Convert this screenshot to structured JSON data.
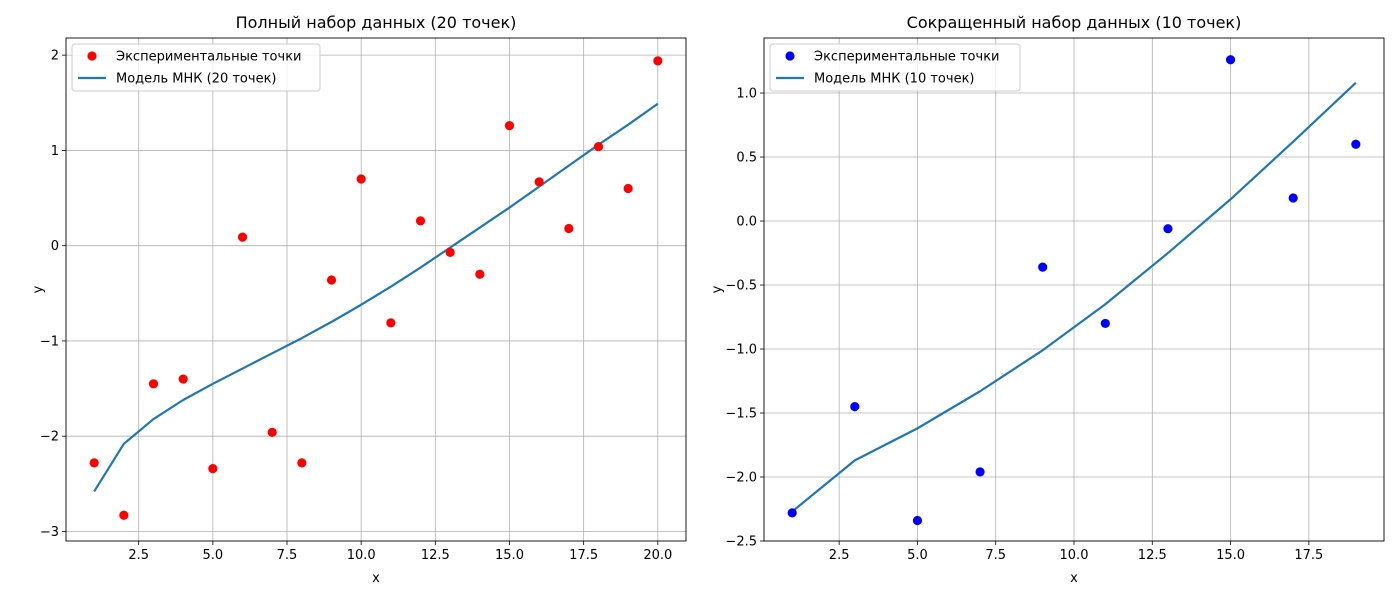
{
  "chart_data": [
    {
      "type": "scatter",
      "title": "Полный набор данных (20 точек)",
      "xlabel": "x",
      "ylabel": "y",
      "xlim": [
        0.05,
        20.95
      ],
      "ylim": [
        -3.1,
        2.18
      ],
      "xticks": [
        2.5,
        5.0,
        7.5,
        10.0,
        12.5,
        15.0,
        17.5,
        20.0
      ],
      "yticks": [
        -3,
        -2,
        -1,
        0,
        1,
        2
      ],
      "grid": true,
      "legend_position": "top-left",
      "series": [
        {
          "name": "Экспериментальные точки",
          "kind": "scatter",
          "color": "#ff0000",
          "x": [
            1,
            2,
            3,
            4,
            5,
            6,
            7,
            8,
            9,
            10,
            11,
            12,
            13,
            14,
            15,
            16,
            17,
            18,
            19,
            20
          ],
          "y": [
            -2.28,
            -2.83,
            -1.45,
            -1.4,
            -2.34,
            0.09,
            -1.96,
            -2.28,
            -0.36,
            0.7,
            -0.81,
            0.26,
            -0.07,
            -0.3,
            1.26,
            0.67,
            0.18,
            1.04,
            0.6,
            1.94
          ]
        },
        {
          "name": "Модель МНК (20 точек)",
          "kind": "line",
          "color": "#1f77b4",
          "x": [
            1,
            2,
            3,
            4,
            5,
            6,
            7,
            8,
            9,
            10,
            11,
            12,
            13,
            14,
            15,
            16,
            17,
            18,
            19,
            20
          ],
          "y": [
            -2.58,
            -2.08,
            -1.82,
            -1.62,
            -1.45,
            -1.29,
            -1.13,
            -0.97,
            -0.8,
            -0.62,
            -0.43,
            -0.23,
            -0.02,
            0.19,
            0.4,
            0.62,
            0.84,
            1.06,
            1.27,
            1.49
          ]
        }
      ]
    },
    {
      "type": "scatter",
      "title": "Сокращенный набор данных (10 точек)",
      "xlabel": "x",
      "ylabel": "y",
      "xlim": [
        0.1,
        19.9
      ],
      "ylim": [
        -2.5,
        1.43
      ],
      "xticks": [
        2.5,
        5.0,
        7.5,
        10.0,
        12.5,
        15.0,
        17.5
      ],
      "yticks": [
        -2.5,
        -2.0,
        -1.5,
        -1.0,
        -0.5,
        0.0,
        0.5,
        1.0
      ],
      "grid": true,
      "legend_position": "top-left",
      "series": [
        {
          "name": "Экспериментальные точки",
          "kind": "scatter",
          "color": "#0000ff",
          "x": [
            1,
            3,
            5,
            7,
            9,
            11,
            13,
            15,
            17,
            19
          ],
          "y": [
            -2.28,
            -1.45,
            -2.34,
            -1.96,
            -0.36,
            -0.8,
            -0.06,
            1.26,
            0.18,
            0.6
          ]
        },
        {
          "name": "Модель МНК (10 точек)",
          "kind": "line",
          "color": "#1f77b4",
          "x": [
            1,
            3,
            5,
            7,
            9,
            11,
            13,
            15,
            17,
            19
          ],
          "y": [
            -2.27,
            -1.87,
            -1.62,
            -1.33,
            -1.01,
            -0.65,
            -0.25,
            0.17,
            0.62,
            1.08
          ]
        }
      ]
    }
  ]
}
